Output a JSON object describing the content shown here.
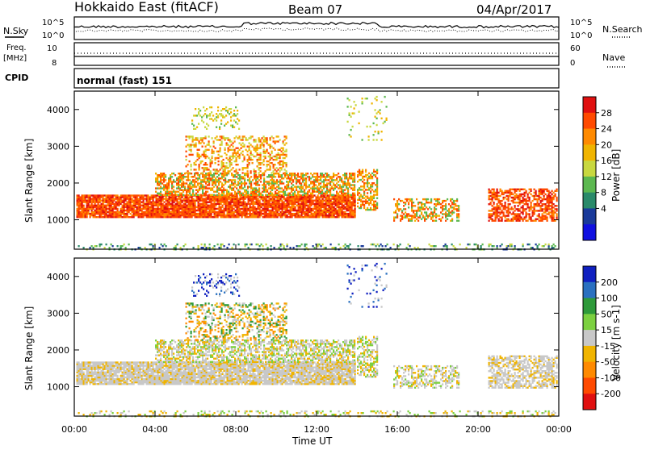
{
  "header": {
    "title": "Hokkaido East (fitACF)",
    "beam": "Beam 07",
    "date": "04/Apr/2017"
  },
  "strip_panels": {
    "noise": {
      "left_label": "N.Sky",
      "left_ticks": [
        "10^5",
        "10^0"
      ],
      "right_ticks": [
        "10^5",
        "10^0"
      ],
      "right_label": "N.Search"
    },
    "frequency": {
      "left_label": "Freq.",
      "left_unit": "[MHz]",
      "left_ticks": [
        "10",
        "8"
      ],
      "right_ticks": [
        "60",
        "0"
      ],
      "right_label": "Nave"
    },
    "cpid": {
      "label": "CPID",
      "text": "normal (fast) 151"
    }
  },
  "chart_data": [
    {
      "type": "heatmap",
      "panel": "power",
      "ylabel": "Slant Range [km]",
      "xlabel": "",
      "ylim": [
        200,
        4500
      ],
      "y_ticks": [
        1000,
        2000,
        3000,
        4000
      ],
      "colorbar": {
        "label": "Power [dB]",
        "ticks": [
          "28",
          "24",
          "20",
          "16",
          "12",
          "8",
          "4"
        ],
        "colors": [
          "#e01010",
          "#ff4a00",
          "#ff8a00",
          "#f0b400",
          "#c8d840",
          "#5cb850",
          "#2a8a6a",
          "#1a3a9a",
          "#1010e0"
        ]
      }
    },
    {
      "type": "heatmap",
      "panel": "velocity",
      "ylabel": "Slant Range [km]",
      "xlabel": "Time UT",
      "ylim": [
        200,
        4500
      ],
      "y_ticks": [
        1000,
        2000,
        3000,
        4000
      ],
      "x_ticks": [
        "00:00",
        "04:00",
        "08:00",
        "12:00",
        "16:00",
        "20:00",
        "00:00"
      ],
      "colorbar": {
        "label": "Velocity [m s-1]",
        "ticks": [
          "200",
          "100",
          "50",
          "15",
          "-15",
          "-50",
          "-100",
          "-200"
        ],
        "colors": [
          "#1020c0",
          "#2a70c0",
          "#2e9a3a",
          "#7cd040",
          "#c8c8c8",
          "#f0b400",
          "#ff8a00",
          "#ff4a00",
          "#e01010"
        ]
      }
    }
  ]
}
